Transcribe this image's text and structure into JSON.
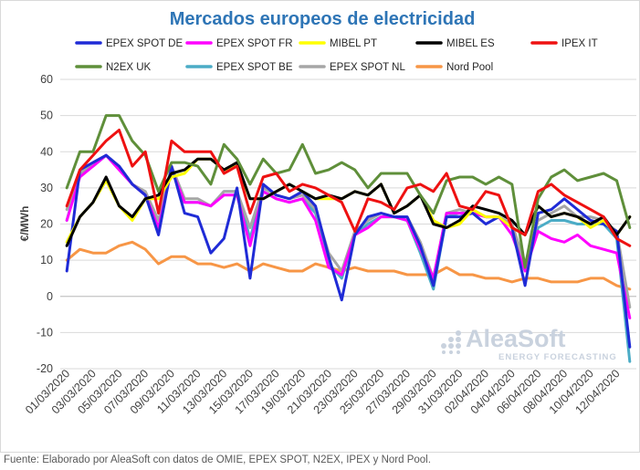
{
  "source_note": "Fuente: Elaborado por AleaSoft con datos de OMIE, EPEX SPOT, N2EX, IPEX y Nord Pool.",
  "logo": {
    "name": "AleaSoft",
    "tagline": "ENERGY FORECASTING"
  },
  "chart_data": {
    "type": "line",
    "title": "Mercados europeos de electricidad",
    "xlabel": "",
    "ylabel": "€/MWh",
    "ylim": [
      -20,
      60
    ],
    "yticks": [
      -20,
      -10,
      0,
      10,
      20,
      30,
      40,
      50,
      60
    ],
    "grid": true,
    "legend": "top",
    "x": [
      "01/03/2020",
      "02/03/2020",
      "03/03/2020",
      "04/03/2020",
      "05/03/2020",
      "06/03/2020",
      "07/03/2020",
      "08/03/2020",
      "09/03/2020",
      "10/03/2020",
      "11/03/2020",
      "12/03/2020",
      "13/03/2020",
      "14/03/2020",
      "15/03/2020",
      "16/03/2020",
      "17/03/2020",
      "18/03/2020",
      "19/03/2020",
      "20/03/2020",
      "21/03/2020",
      "22/03/2020",
      "23/03/2020",
      "24/03/2020",
      "25/03/2020",
      "26/03/2020",
      "27/03/2020",
      "28/03/2020",
      "29/03/2020",
      "30/03/2020",
      "31/03/2020",
      "01/04/2020",
      "02/04/2020",
      "03/04/2020",
      "04/04/2020",
      "05/04/2020",
      "06/04/2020",
      "07/04/2020",
      "08/04/2020",
      "09/04/2020",
      "10/04/2020",
      "11/04/2020",
      "12/04/2020",
      "13/04/2020"
    ],
    "xtick_labels": [
      "01/03/2020",
      "03/03/2020",
      "05/03/2020",
      "07/03/2020",
      "09/03/2020",
      "11/03/2020",
      "13/03/2020",
      "15/03/2020",
      "17/03/2020",
      "19/03/2020",
      "21/03/2020",
      "23/03/2020",
      "25/03/2020",
      "27/03/2020",
      "29/03/2020",
      "31/03/2020",
      "02/04/2020",
      "04/04/2020",
      "06/04/2020",
      "08/04/2020",
      "10/04/2020",
      "12/04/2020"
    ],
    "series": [
      {
        "name": "EPEX SPOT DE",
        "color": "#1f2bd6",
        "values": [
          7,
          35,
          37,
          39,
          36,
          31,
          28,
          17,
          36,
          23,
          22,
          12,
          16,
          30,
          5,
          31,
          28,
          27,
          29,
          25,
          11,
          -1,
          17,
          22,
          23,
          22,
          22,
          14,
          3,
          22,
          22,
          23,
          20,
          22,
          19,
          3,
          23,
          24,
          27,
          24,
          21,
          20,
          18,
          -14
        ]
      },
      {
        "name": "EPEX SPOT FR",
        "color": "#ff00ff",
        "values": [
          21,
          33,
          36,
          39,
          35,
          31,
          28,
          19,
          35,
          26,
          26,
          25,
          28,
          28,
          14,
          29,
          27,
          26,
          27,
          21,
          8,
          6,
          17,
          19,
          22,
          22,
          21,
          13,
          5,
          23,
          23,
          23,
          22,
          22,
          17,
          7,
          18,
          16,
          15,
          17,
          14,
          13,
          12,
          -6
        ]
      },
      {
        "name": "MIBEL PT",
        "color": "#ffff00",
        "values": [
          15,
          22,
          26,
          32,
          25,
          21,
          27,
          27,
          33,
          34,
          38,
          38,
          35,
          36,
          27,
          27,
          29,
          31,
          29,
          27,
          27,
          27,
          29,
          28,
          31,
          23,
          25,
          28,
          21,
          19,
          20,
          24,
          22,
          22,
          19,
          17,
          25,
          22,
          23,
          22,
          19,
          21,
          17,
          22
        ]
      },
      {
        "name": "MIBEL ES",
        "color": "#000000",
        "values": [
          14,
          22,
          26,
          33,
          25,
          22,
          27,
          28,
          34,
          35,
          38,
          38,
          35,
          37,
          27,
          27,
          29,
          31,
          29,
          27,
          28,
          27,
          29,
          28,
          31,
          23,
          25,
          28,
          20,
          19,
          21,
          25,
          24,
          23,
          21,
          17,
          25,
          22,
          23,
          22,
          20,
          22,
          17,
          22
        ]
      },
      {
        "name": "IPEX IT",
        "color": "#ee1111",
        "values": [
          25,
          35,
          39,
          43,
          46,
          36,
          40,
          23,
          43,
          40,
          40,
          40,
          34,
          36,
          23,
          33,
          34,
          29,
          31,
          30,
          28,
          26,
          18,
          27,
          26,
          24,
          30,
          31,
          29,
          34,
          25,
          24,
          29,
          28,
          19,
          17,
          29,
          31,
          28,
          26,
          24,
          22,
          16,
          14
        ]
      },
      {
        "name": "N2EX UK",
        "color": "#5f8f3a",
        "values": [
          30,
          40,
          40,
          50,
          50,
          43,
          39,
          29,
          37,
          37,
          36,
          31,
          42,
          38,
          31,
          38,
          34,
          35,
          42,
          34,
          35,
          37,
          35,
          30,
          34,
          34,
          34,
          28,
          23,
          32,
          33,
          33,
          31,
          33,
          31,
          8,
          27,
          33,
          35,
          32,
          33,
          34,
          32,
          19
        ]
      },
      {
        "name": "EPEX SPOT BE",
        "color": "#4bacc6",
        "values": [
          21,
          34,
          36,
          39,
          36,
          31,
          28,
          19,
          36,
          26,
          26,
          25,
          29,
          29,
          16,
          29,
          27,
          26,
          27,
          23,
          9,
          5,
          17,
          20,
          22,
          22,
          21,
          12,
          2,
          22,
          23,
          23,
          22,
          22,
          19,
          7,
          19,
          21,
          21,
          20,
          20,
          20,
          16,
          -18
        ]
      },
      {
        "name": "EPEX SPOT NL",
        "color": "#a6a6a6",
        "values": [
          24,
          34,
          37,
          39,
          36,
          31,
          29,
          21,
          36,
          27,
          27,
          25,
          29,
          29,
          19,
          30,
          28,
          27,
          28,
          24,
          12,
          7,
          18,
          21,
          23,
          22,
          22,
          15,
          5,
          23,
          24,
          23,
          22,
          22,
          20,
          9,
          21,
          23,
          25,
          22,
          22,
          21,
          18,
          -3
        ]
      },
      {
        "name": "Nord Pool",
        "color": "#f79646",
        "values": [
          10,
          13,
          12,
          12,
          14,
          15,
          13,
          9,
          11,
          11,
          9,
          9,
          8,
          9,
          7,
          9,
          8,
          7,
          7,
          9,
          8,
          7,
          8,
          7,
          7,
          7,
          6,
          6,
          6,
          8,
          6,
          6,
          5,
          5,
          4,
          5,
          5,
          4,
          4,
          4,
          5,
          5,
          3,
          2
        ]
      }
    ]
  }
}
